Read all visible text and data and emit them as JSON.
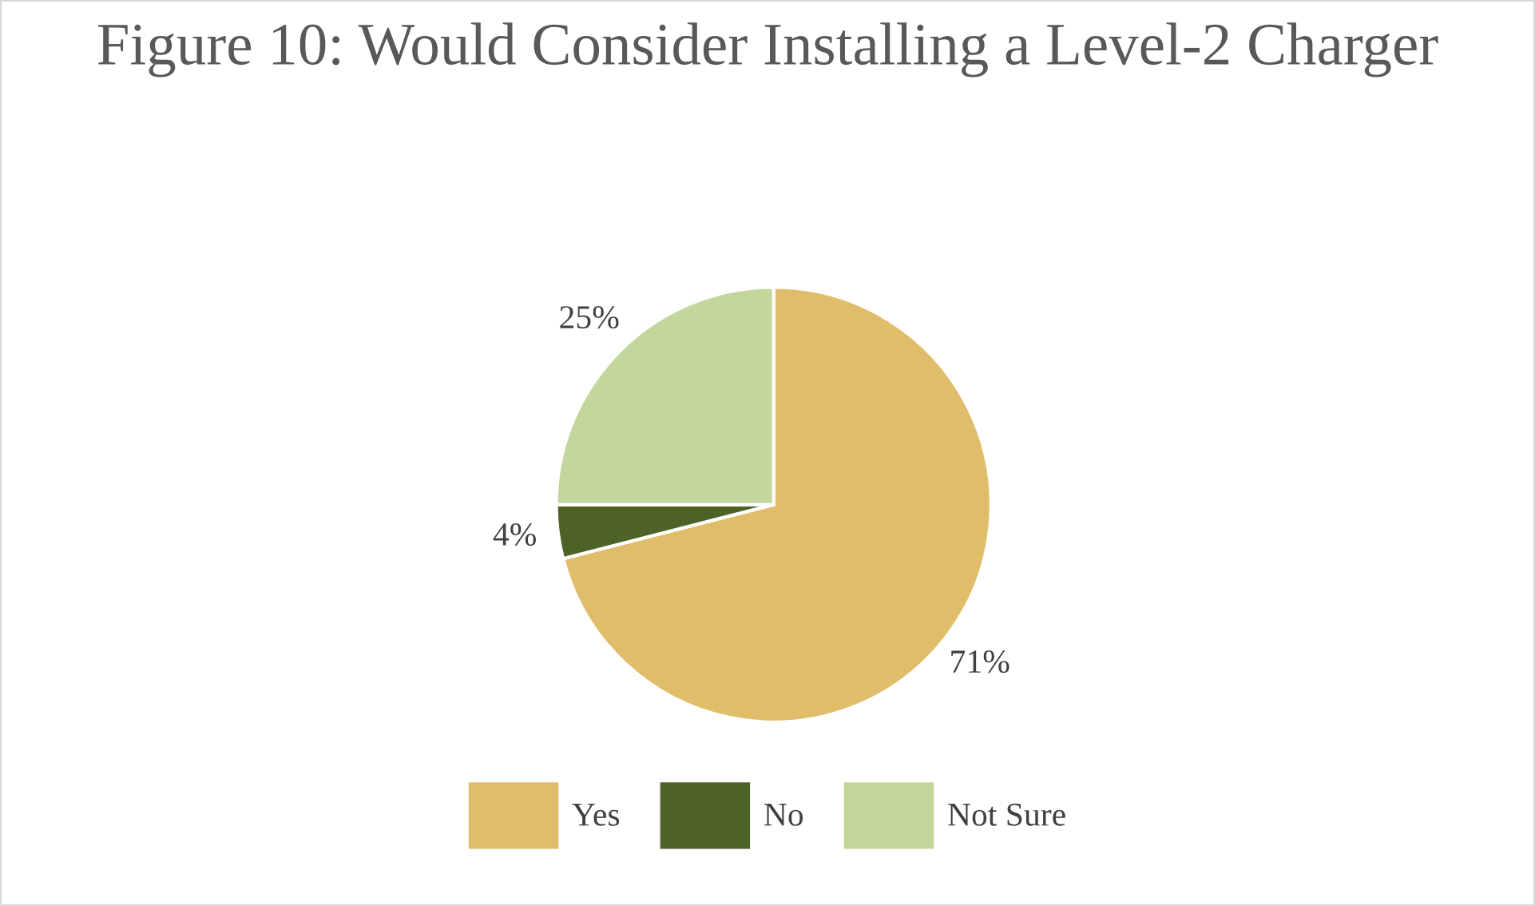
{
  "chart_data": {
    "type": "pie",
    "title": "Figure 10: Would Consider Installing a Level-2 Charger",
    "categories": [
      "Yes",
      "No",
      "Not Sure"
    ],
    "values": [
      71,
      4,
      25
    ],
    "value_labels": [
      "71%",
      "4%",
      "25%"
    ],
    "colors": [
      "#e0bd6a",
      "#4e6228",
      "#c3d69b"
    ],
    "legend": "bottom"
  }
}
